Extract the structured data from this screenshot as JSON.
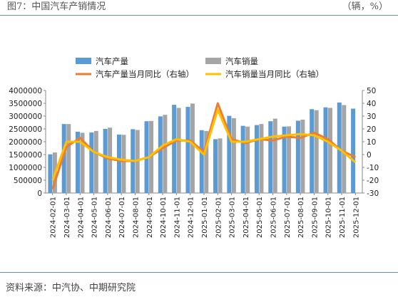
{
  "header": {
    "title": "图7：中国汽车产销情况",
    "unit": "（辆，%）"
  },
  "footer": {
    "source": "资料来源：中汽协、中期研究院"
  },
  "colors": {
    "production_bar": "#5b9bd5",
    "sales_bar": "#a5a5a5",
    "production_yoy_line": "#ed7d31",
    "sales_yoy_line": "#ffc000",
    "rule": "#6b8cb3"
  },
  "chart_data": {
    "type": "bar",
    "title": "",
    "xlabel": "",
    "ylabel": "",
    "categories": [
      "2024-02-01",
      "2024-03-01",
      "2024-04-01",
      "2024-05-01",
      "2024-06-01",
      "2024-07-01",
      "2024-08-01",
      "2024-09-01",
      "2024-10-01",
      "2024-11-01",
      "2024-12-01",
      "2025-01-01",
      "2025-02-01",
      "2025-03-01",
      "2025-04-01",
      "2025-05-01",
      "2025-06-01",
      "2025-07-01",
      "2025-08-01",
      "2025-09-01",
      "2025-10-01",
      "2025-11-01",
      "2025-12-01"
    ],
    "ylim_left": [
      0,
      4000000
    ],
    "yticks_left": [
      "0",
      "500000",
      "1000000",
      "1500000",
      "2000000",
      "2500000",
      "3000000",
      "3500000",
      "4000000"
    ],
    "ylim_right": [
      -30,
      50
    ],
    "yticks_right": [
      "-30",
      "-20",
      "-10",
      "0",
      "10",
      "20",
      "30",
      "40",
      "50"
    ],
    "series": [
      {
        "name": "汽车产量",
        "kind": "bar",
        "axis": "left",
        "values": [
          1510000,
          2690000,
          2390000,
          2360000,
          2500000,
          2280000,
          2490000,
          2800000,
          2990000,
          3440000,
          3360000,
          2450000,
          2100000,
          3010000,
          2620000,
          2650000,
          2800000,
          2590000,
          2820000,
          3270000,
          3340000,
          3530000,
          3290000
        ]
      },
      {
        "name": "汽车销量",
        "kind": "bar",
        "axis": "left",
        "values": [
          1580000,
          2690000,
          2350000,
          2420000,
          2550000,
          2270000,
          2460000,
          2810000,
          3050000,
          3320000,
          3490000,
          2420000,
          2130000,
          2920000,
          2590000,
          2690000,
          2900000,
          2600000,
          2860000,
          3230000,
          3320000,
          3430000,
          null
        ]
      },
      {
        "name": "汽车产量当月同比（右轴）",
        "kind": "line",
        "axis": "right",
        "values": [
          -27,
          6,
          13,
          2,
          -3,
          -5,
          -5,
          -2,
          5,
          11,
          11,
          2,
          40,
          12,
          9,
          12,
          11,
          14,
          13,
          17,
          12,
          3,
          -2
        ]
      },
      {
        "name": "汽车销量当月同比（右轴）",
        "kind": "line",
        "axis": "right",
        "values": [
          -20,
          10,
          10,
          2,
          -2,
          -4,
          -5,
          -2,
          7,
          12,
          10,
          0,
          35,
          10,
          10,
          12,
          14,
          15,
          16,
          15,
          10,
          3,
          -6
        ]
      }
    ],
    "legend_position": "top",
    "grid": false
  }
}
